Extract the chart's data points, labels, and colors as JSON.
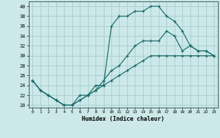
{
  "xlabel": "Humidex (Indice chaleur)",
  "xlim": [
    -0.5,
    23.5
  ],
  "ylim": [
    19.5,
    41.0
  ],
  "xticks": [
    0,
    1,
    2,
    3,
    4,
    5,
    6,
    7,
    8,
    9,
    10,
    11,
    12,
    13,
    14,
    15,
    16,
    17,
    18,
    19,
    20,
    21,
    22,
    23
  ],
  "yticks": [
    20,
    22,
    24,
    26,
    28,
    30,
    32,
    34,
    36,
    38,
    40
  ],
  "bg_color": "#cce8e8",
  "grid_color": "#aacfcf",
  "line_color": "#1a6b6b",
  "curve1_x": [
    0,
    1,
    2,
    3,
    4,
    5,
    6,
    7,
    8,
    9,
    10,
    11,
    12,
    13,
    14,
    15,
    16,
    17,
    18,
    19,
    20,
    21,
    22,
    23
  ],
  "curve1_y": [
    25,
    23,
    22,
    21,
    20,
    20,
    21,
    22,
    23,
    24,
    25,
    26,
    27,
    28,
    29,
    30,
    30,
    30,
    30,
    30,
    30,
    30,
    30,
    30
  ],
  "curve2_x": [
    0,
    1,
    2,
    3,
    4,
    5,
    6,
    7,
    8,
    9,
    10,
    11,
    12,
    13,
    14,
    15,
    16,
    17,
    18,
    19,
    20,
    21,
    22,
    23
  ],
  "curve2_y": [
    25,
    23,
    22,
    21,
    20,
    20,
    22,
    22,
    24,
    24,
    36,
    38,
    38,
    39,
    39,
    40,
    40,
    38,
    37,
    35,
    32,
    31,
    31,
    30
  ],
  "curve3_x": [
    0,
    1,
    2,
    3,
    4,
    5,
    6,
    7,
    8,
    9,
    10,
    11,
    12,
    13,
    14,
    15,
    16,
    17,
    18,
    19,
    20,
    21,
    22,
    23
  ],
  "curve3_y": [
    25,
    23,
    22,
    21,
    20,
    20,
    21,
    22,
    23,
    25,
    27,
    28,
    30,
    32,
    33,
    33,
    33,
    35,
    34,
    31,
    32,
    31,
    31,
    30
  ]
}
